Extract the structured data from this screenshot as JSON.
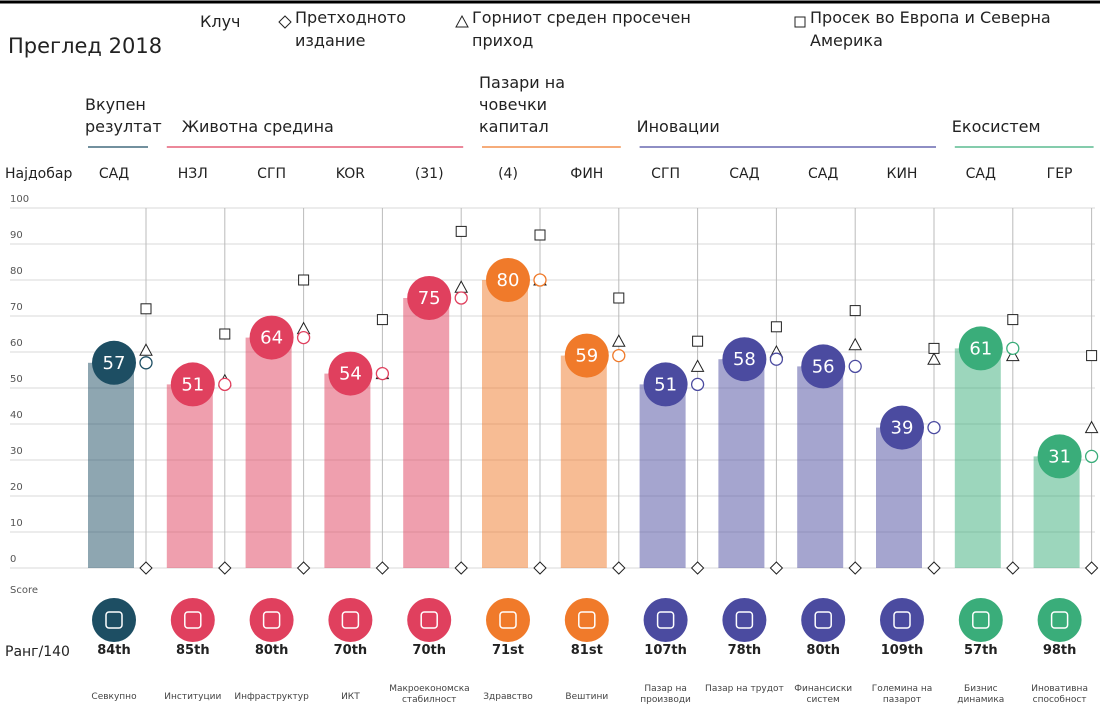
{
  "chart_data": {
    "type": "bar",
    "title": "Преглед 2018",
    "legend_title": "Клуч",
    "groups": [
      {
        "name": "Вкупен резултат",
        "color": "#1d4e63",
        "span": 1
      },
      {
        "name": "Животна средина",
        "color": "#e0405e",
        "span": 4
      },
      {
        "name": "Пазари на човечки капитал",
        "color": "#f07a2a",
        "span": 2
      },
      {
        "name": "Иновации",
        "color": "#4b4ba0",
        "span": 4
      },
      {
        "name": "Екосистем",
        "color": "#3aad7a",
        "span": 2
      }
    ],
    "best_label": "Најдобар",
    "best": [
      "САД",
      "НЗЛ",
      "СГП",
      "KOR",
      "(31)",
      "(4)",
      "ФИН",
      "СГП",
      "САД",
      "САД",
      "КИН",
      "САД",
      "ГЕР"
    ],
    "categories": [
      "Севкупно",
      "Институции",
      "Инфраструктур",
      "ИКТ",
      "Макроекономска стабилност",
      "Здравство",
      "Вештини",
      "Пазар на производи",
      "Пазар на трудот",
      "Финансиски систем",
      "Големина на пазарот",
      "Бизнис динамика",
      "Иновативна способност"
    ],
    "values": [
      57,
      51,
      64,
      54,
      75,
      80,
      59,
      51,
      58,
      56,
      39,
      61,
      31
    ],
    "series": [
      {
        "name": "Претходното издание",
        "marker": "diamond",
        "values": [
          0,
          0,
          0,
          0,
          0,
          0,
          0,
          0,
          0,
          0,
          0,
          0,
          0
        ]
      },
      {
        "name": "Горниот среден просечен приход",
        "marker": "triangle",
        "values": [
          60.5,
          52,
          66.5,
          54,
          78,
          80,
          63,
          56,
          60,
          62,
          58,
          59,
          39
        ]
      },
      {
        "name": "Просек во Европа и Северна Америка",
        "marker": "square",
        "values": [
          72,
          65,
          80,
          69,
          93.5,
          92.5,
          75,
          63,
          67,
          71.5,
          61,
          69,
          59
        ]
      }
    ],
    "rank_label": "Ранг/140",
    "ranks": [
      "84th",
      "85th",
      "80th",
      "70th",
      "70th",
      "71st",
      "81st",
      "107th",
      "78th",
      "80th",
      "109th",
      "57th",
      "98th"
    ],
    "ylabel": "Score",
    "ylim": [
      0,
      100
    ],
    "yticks": [
      0,
      10,
      20,
      30,
      40,
      50,
      60,
      70,
      80,
      90,
      100
    ],
    "grid": true
  }
}
